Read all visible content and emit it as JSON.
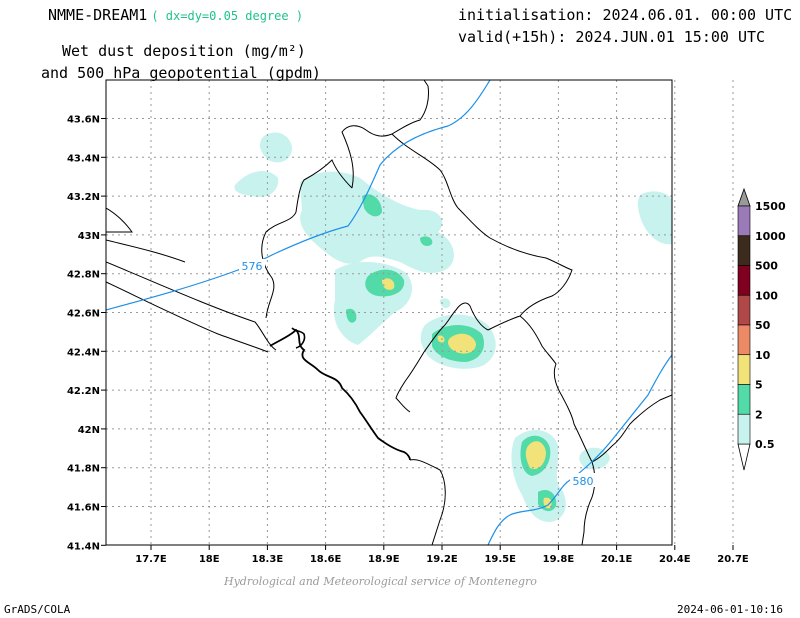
{
  "header": {
    "model": "NMME-DREAM1",
    "resolution": "( dx=dy=0.05 degree )",
    "init": "initialisation: 2024.06.01. 00:00 UTC",
    "valid": "valid(+15h): 2024.JUN.01 15:00 UTC",
    "field_line1": "Wet dust deposition (mg/m²)",
    "field_line2": "and 500 hPa geopotential (gpdm)"
  },
  "map": {
    "lon_ticks": [
      "17.7E",
      "18E",
      "18.3E",
      "18.6E",
      "18.9E",
      "19.2E",
      "19.5E",
      "19.8E",
      "20.1E",
      "20.4E",
      "20.7E"
    ],
    "lat_ticks": [
      "43.6N",
      "43.4N",
      "43.2N",
      "43N",
      "42.8N",
      "42.6N",
      "42.4N",
      "42.2N",
      "42N",
      "41.8N",
      "41.6N",
      "41.4N"
    ],
    "contour_labels": [
      "576",
      "580"
    ],
    "contour_color": "#1e90e8"
  },
  "legend": {
    "labels": [
      "1500",
      "1000",
      "500",
      "100",
      "50",
      "10",
      "5",
      "2",
      "0.5"
    ],
    "colors": [
      "#9a7bb8",
      "#3c2a1c",
      "#800020",
      "#b04848",
      "#ec8a66",
      "#f2e27a",
      "#52dba8",
      "#c8f2ee"
    ]
  },
  "footer": {
    "credit": "Hydrological and Meteorological service of Montenegro",
    "software": "GrADS/COLA",
    "timestamp": "2024-06-01-10:16"
  }
}
